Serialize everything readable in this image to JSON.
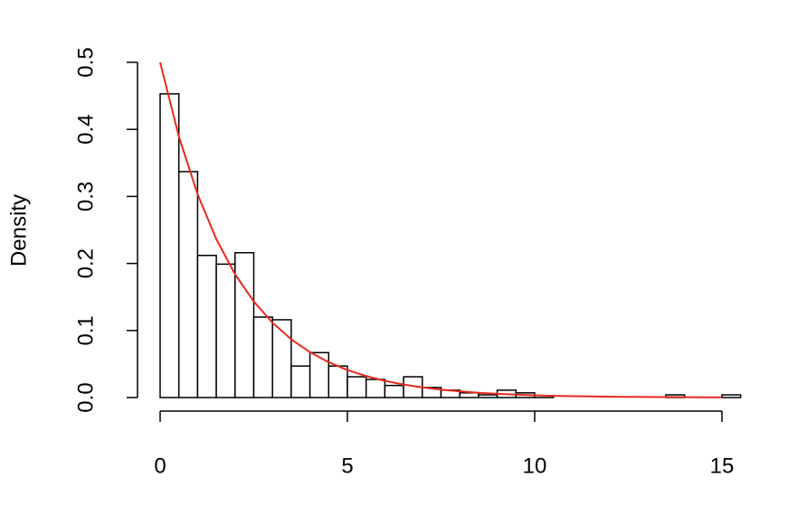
{
  "chart_data": {
    "type": "histogram",
    "y_label": "Density",
    "bins": [
      0,
      0.5,
      1,
      1.5,
      2,
      2.5,
      3,
      3.5,
      4,
      4.5,
      5,
      5.5,
      6,
      6.5,
      7,
      7.5,
      8,
      8.5,
      9,
      9.5,
      10,
      10.5,
      11,
      11.5,
      12,
      12.5,
      13,
      13.5,
      14,
      14.5,
      15,
      15.5
    ],
    "values": [
      0.453,
      0.337,
      0.212,
      0.199,
      0.216,
      0.12,
      0.116,
      0.047,
      0.067,
      0.047,
      0.031,
      0.027,
      0.018,
      0.031,
      0.015,
      0.011,
      0.007,
      0.004,
      0.011,
      0.007,
      0.003,
      0,
      0,
      0,
      0,
      0,
      0,
      0.004,
      0,
      0,
      0.004
    ],
    "color": "#ffffff",
    "edge_color": "#000000",
    "curve": {
      "color": "#e8291c",
      "x": [
        0,
        0.5,
        1,
        1.5,
        2,
        2.5,
        3,
        3.5,
        4,
        4.5,
        5,
        5.5,
        6,
        6.5,
        7,
        7.5,
        8,
        8.5,
        9,
        9.5,
        10,
        10.5,
        11,
        11.5,
        12,
        12.5,
        13,
        13.5,
        14,
        14.5,
        15
      ],
      "y": [
        0.5,
        0.3894,
        0.3033,
        0.2362,
        0.1839,
        0.1433,
        0.1116,
        0.0869,
        0.0677,
        0.0527,
        0.041,
        0.032,
        0.0249,
        0.0194,
        0.0151,
        0.0118,
        0.0092,
        0.0071,
        0.0056,
        0.0043,
        0.0034,
        0.0026,
        0.002,
        0.0016,
        0.0012,
        0.001,
        0.0008,
        0.0006,
        0.0005,
        0.0004,
        0.0003
      ]
    },
    "xlim": [
      0,
      15.5
    ],
    "ylim": [
      0,
      0.5
    ],
    "xticks": [
      0,
      5,
      10,
      15
    ],
    "yticks": [
      {
        "value": 0,
        "label": "0.0"
      },
      0.1,
      0.2,
      0.3,
      0.4,
      0.5
    ]
  }
}
